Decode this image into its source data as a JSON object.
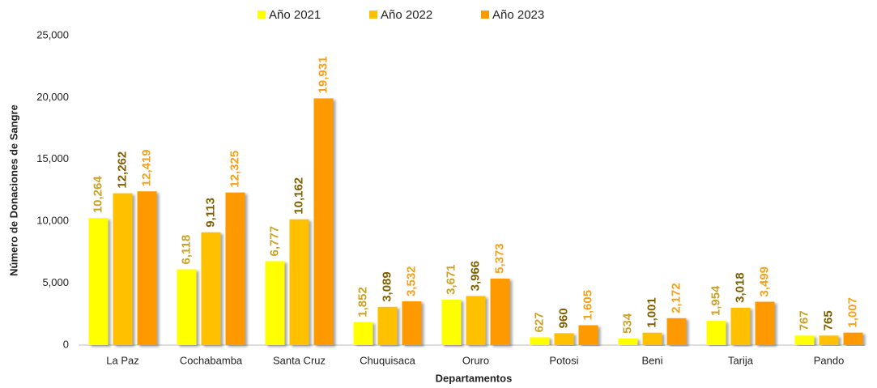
{
  "chart_data": {
    "type": "bar",
    "x_label": "Departamentos",
    "y_label": "Número de Donaciones de Sangre",
    "categories": [
      "La Paz",
      "Cochabamba",
      "Santa Cruz",
      "Chuquisaca",
      "Oruro",
      "Potosi",
      "Beni",
      "Tarija",
      "Pando"
    ],
    "series": [
      {
        "name": "Año 2021",
        "color": "#ffff00",
        "label_color": "#c9a227",
        "values": [
          10264,
          6118,
          6777,
          1852,
          3671,
          627,
          534,
          1954,
          767
        ],
        "value_labels": [
          "10,264",
          "6,118",
          "6,777",
          "1,852",
          "3,671",
          "627",
          "534",
          "1,954",
          "767"
        ]
      },
      {
        "name": "Año 2022",
        "color": "#ffc000",
        "label_color": "#7f6000",
        "values": [
          12262,
          9113,
          10162,
          3089,
          3966,
          960,
          1001,
          3018,
          765
        ],
        "value_labels": [
          "12,262",
          "9,113",
          "10,162",
          "3,089",
          "3,966",
          "960",
          "1,001",
          "3,018",
          "765"
        ]
      },
      {
        "name": "Año 2023",
        "color": "#ff9900",
        "label_color": "#f5a11c",
        "values": [
          12419,
          12325,
          19931,
          3532,
          5373,
          1605,
          2172,
          3499,
          1007
        ],
        "value_labels": [
          "12,419",
          "12,325",
          "19,931",
          "3,532",
          "5,373",
          "1,605",
          "2,172",
          "3,499",
          "1,007"
        ]
      }
    ],
    "ylim": [
      0,
      25000
    ],
    "yticks": [
      0,
      {
        "value": 5000,
        "label": "5,000"
      },
      {
        "value": 10000,
        "label": "10,000"
      },
      {
        "value": 15000,
        "label": "15,000"
      },
      {
        "value": 20000,
        "label": "20,000"
      },
      {
        "value": 25000,
        "label": "25,000"
      }
    ],
    "grid": false
  }
}
